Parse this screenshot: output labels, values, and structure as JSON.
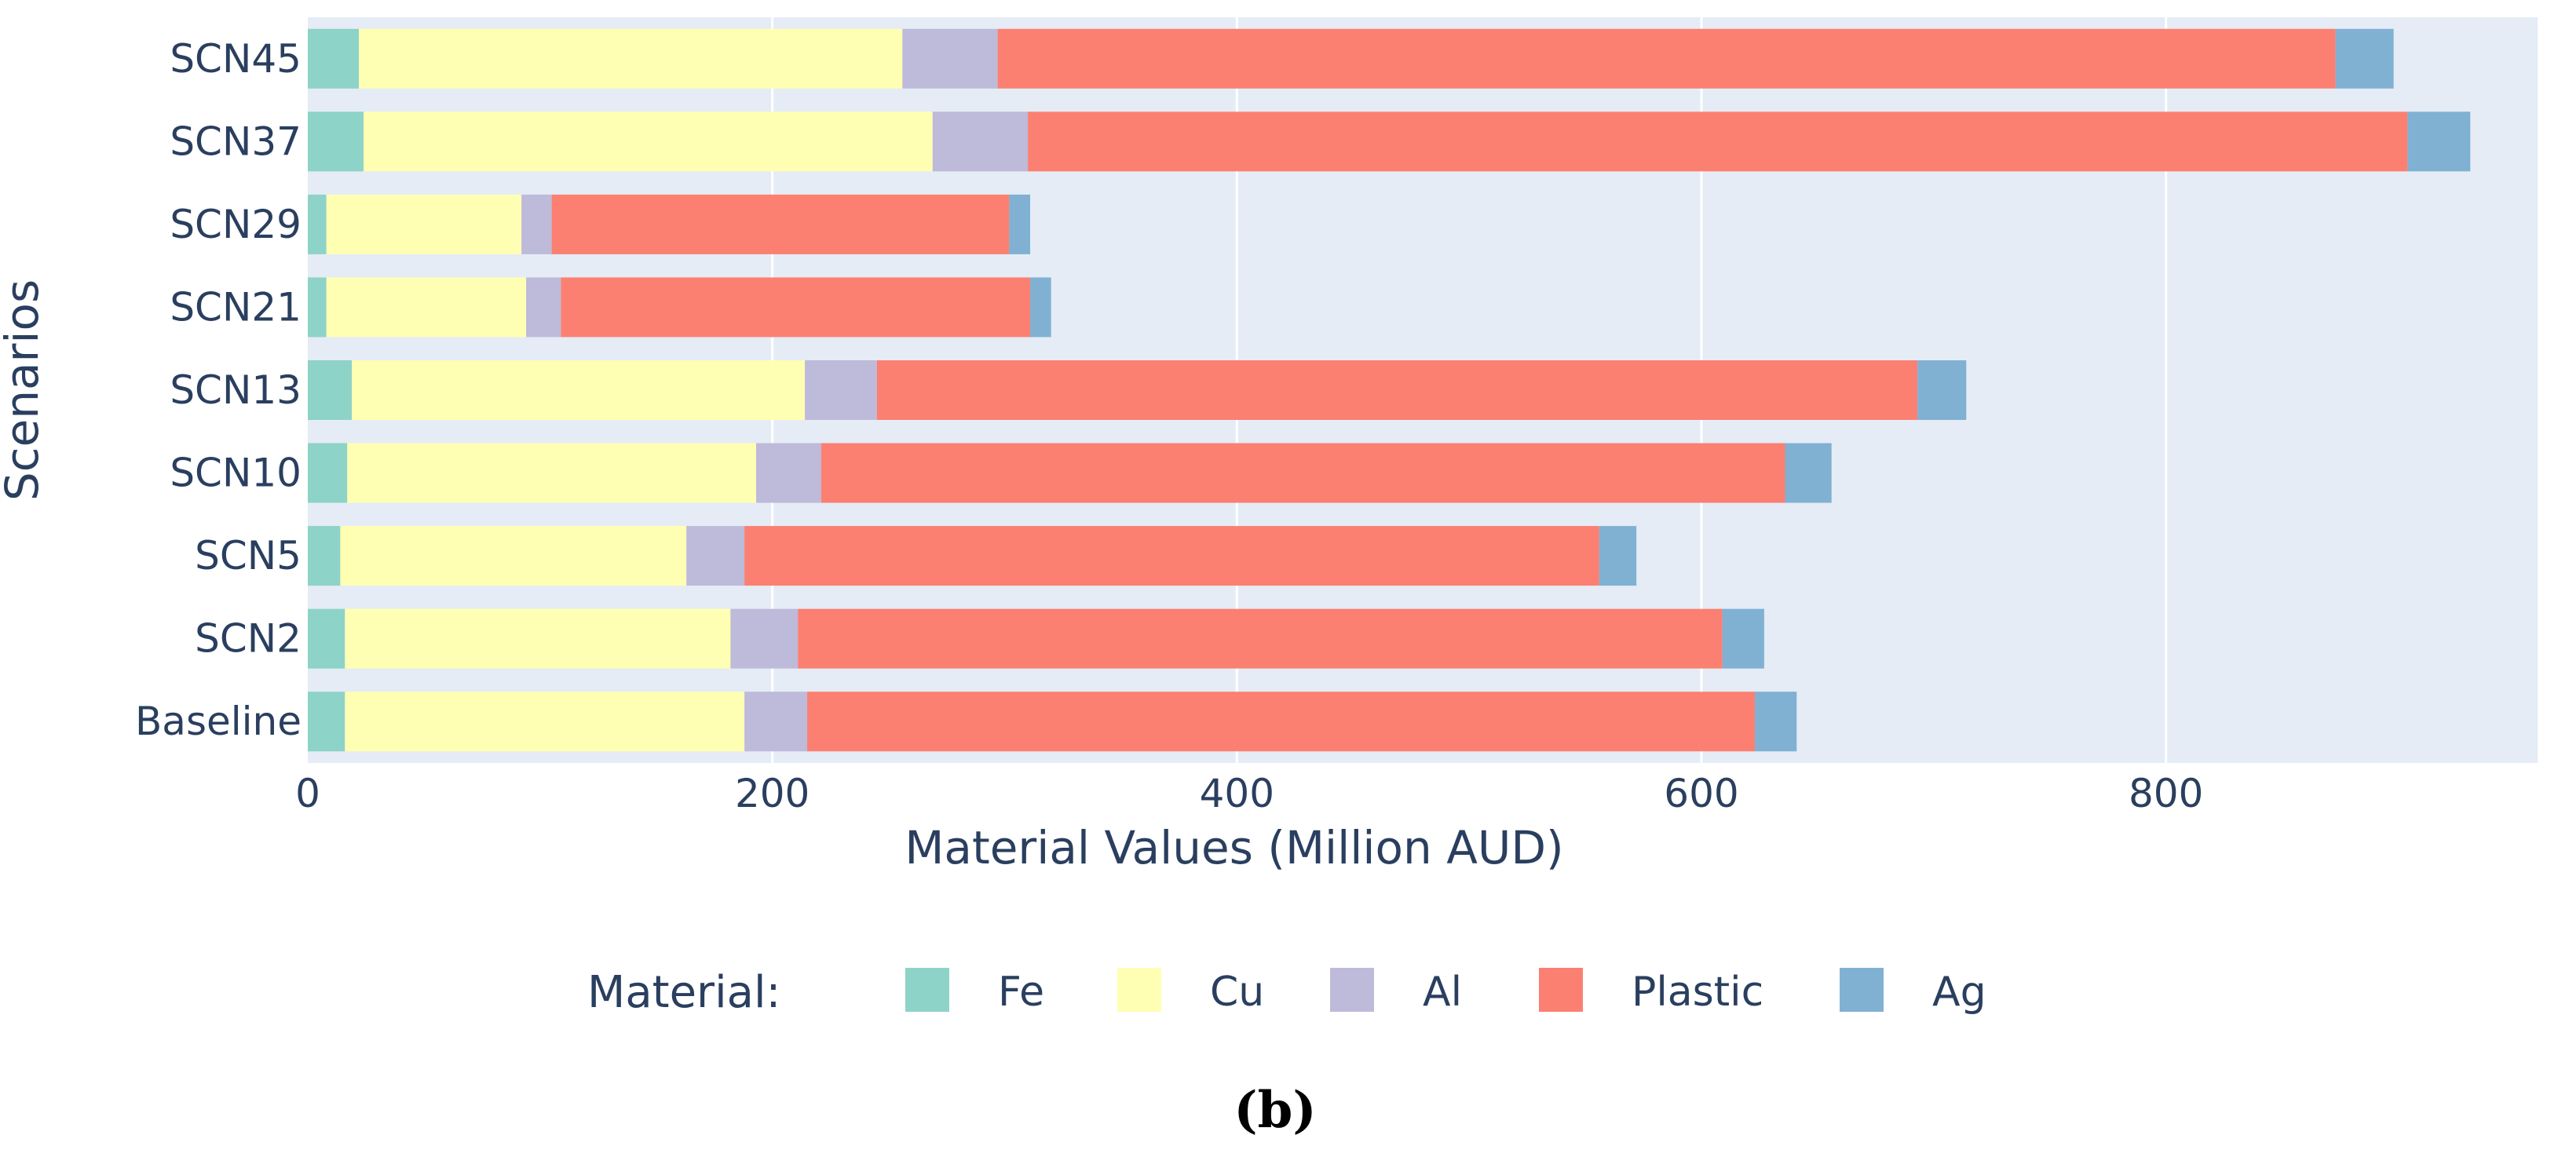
{
  "chart_data": {
    "type": "bar",
    "orientation": "horizontal",
    "stacked": true,
    "title": "",
    "xlabel": "Material Values (Million AUD)",
    "ylabel": "Scenarios",
    "xlim": [
      0,
      960
    ],
    "xticks": [
      0,
      200,
      400,
      600,
      800
    ],
    "grid": true,
    "legend_title": "Material:",
    "legend_position": "bottom",
    "panel_label": "(b)",
    "categories": [
      "Baseline",
      "SCN2",
      "SCN5",
      "SCN10",
      "SCN13",
      "SCN21",
      "SCN29",
      "SCN37",
      "SCN45"
    ],
    "series": [
      {
        "name": "Fe",
        "color": "#8dd3c7",
        "values": [
          16,
          16,
          14,
          17,
          19,
          8,
          8,
          24,
          22
        ]
      },
      {
        "name": "Cu",
        "color": "#ffffb3",
        "values": [
          172,
          166,
          149,
          176,
          195,
          86,
          84,
          245,
          234
        ]
      },
      {
        "name": "Al",
        "color": "#bebada",
        "values": [
          27,
          29,
          25,
          28,
          31,
          15,
          13,
          41,
          41
        ]
      },
      {
        "name": "Plastic",
        "color": "#fb8072",
        "values": [
          408,
          398,
          368,
          415,
          448,
          202,
          197,
          594,
          576
        ]
      },
      {
        "name": "Ag",
        "color": "#80b1d3",
        "values": [
          18,
          18,
          16,
          20,
          21,
          9,
          9,
          27,
          25
        ]
      }
    ]
  },
  "colors": {
    "plot_background": "#e5ecf6",
    "grid": "#ffffff",
    "text": "#2a3f5f"
  }
}
